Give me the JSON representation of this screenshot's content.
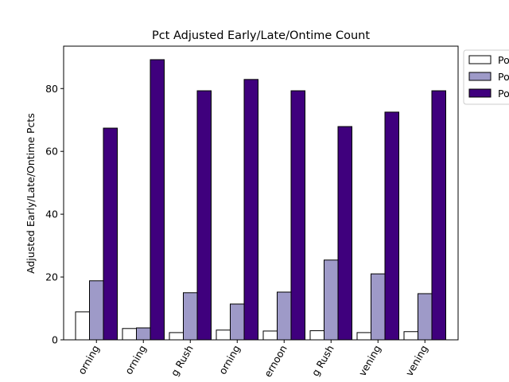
{
  "chart_data": {
    "type": "bar",
    "title": "Pct Adjusted Early/Late/Ontime Count",
    "xlabel": "",
    "ylabel": "Adjusted Early/Late/Ontime Pcts",
    "ylim": [
      0,
      93.5
    ],
    "yticks": [
      0,
      20,
      40,
      60,
      80
    ],
    "categories": [
      "orning",
      "orning",
      "g Rush",
      "orning",
      "ernoon",
      "g Rush",
      "vening",
      "vening"
    ],
    "series": [
      {
        "name": "Po",
        "color": "#ffffff",
        "values": [
          8.9,
          3.6,
          2.3,
          3.1,
          2.8,
          2.9,
          2.3,
          2.6
        ]
      },
      {
        "name": "Po",
        "color": "#9e9ac8",
        "values": [
          18.8,
          3.8,
          15.0,
          11.4,
          15.2,
          25.4,
          21.0,
          14.7
        ]
      },
      {
        "name": "Po",
        "color": "#3f007d",
        "values": [
          67.4,
          89.2,
          79.3,
          82.9,
          79.3,
          67.9,
          72.5,
          79.3
        ]
      }
    ],
    "grid": false,
    "legend_position": "upper-right-outside"
  }
}
